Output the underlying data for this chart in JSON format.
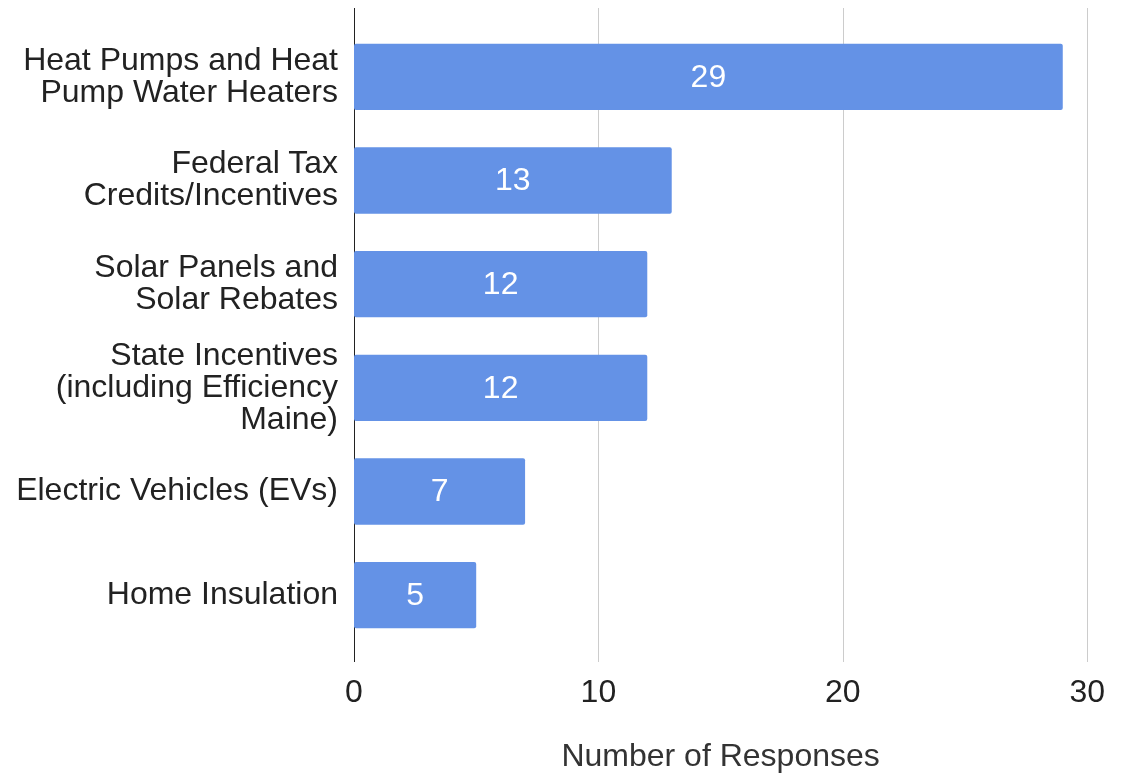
{
  "chart_data": {
    "type": "bar",
    "orientation": "horizontal",
    "categories": [
      "Heat Pumps and Heat Pump Water Heaters",
      "Federal Tax Credits/Incentives",
      "Solar Panels and Solar Rebates",
      "State Incentives (including Efficiency Maine)",
      "Electric Vehicles (EVs)",
      "Home Insulation"
    ],
    "values": [
      29,
      13,
      12,
      12,
      7,
      5
    ],
    "color": "#6492e6",
    "xlabel": "Number of Responses",
    "xlim": [
      0,
      30
    ],
    "xticks": [
      0,
      10,
      20,
      30
    ],
    "grid": "x",
    "data_labels": true
  }
}
